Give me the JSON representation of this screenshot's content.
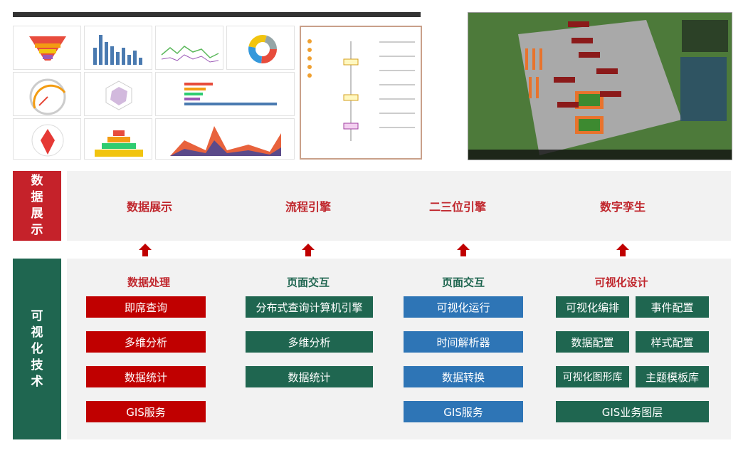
{
  "colors": {
    "red": "#c00000",
    "green": "#1f6650",
    "blue": "#2e75b6",
    "heading_red": "#c0272d"
  },
  "display": {
    "side_label": [
      "数",
      "据",
      "展",
      "示"
    ],
    "items": [
      "数据展示",
      "流程引擎",
      "二三位引擎",
      "数字孪生"
    ]
  },
  "tech": {
    "side_label": [
      "可",
      "视",
      "化",
      "技",
      "术"
    ],
    "columns": [
      {
        "title": "数据处理",
        "buttons": [
          "即席查询",
          "多维分析",
          "数据统计",
          "GIS服务"
        ]
      },
      {
        "title": "页面交互",
        "buttons": [
          "分布式查询计算机引擎",
          "多维分析",
          "数据统计"
        ]
      },
      {
        "title": "页面交互",
        "buttons": [
          "可视化运行",
          "时间解析器",
          "数据转换",
          "GIS服务"
        ]
      },
      {
        "title": "可视化设计",
        "buttons": [
          "可视化编排",
          "事件配置",
          "数据配置",
          "样式配置",
          "可视化图形库",
          "主题模板库",
          "GIS业务图层"
        ]
      }
    ]
  }
}
